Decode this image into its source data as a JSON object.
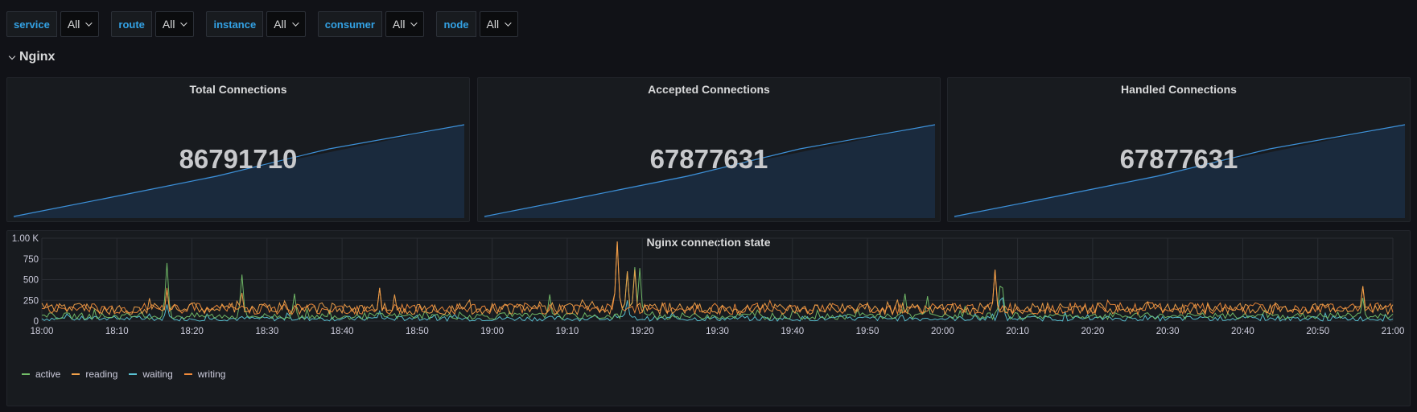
{
  "variables": [
    {
      "label": "service",
      "value": "All"
    },
    {
      "label": "route",
      "value": "All"
    },
    {
      "label": "instance",
      "value": "All"
    },
    {
      "label": "consumer",
      "value": "All"
    },
    {
      "label": "node",
      "value": "All"
    }
  ],
  "row": {
    "title": "Nginx"
  },
  "stats": [
    {
      "title": "Total Connections",
      "value": "86791710"
    },
    {
      "title": "Accepted Connections",
      "value": "67877631"
    },
    {
      "title": "Handled Connections",
      "value": "67877631"
    }
  ],
  "colors": {
    "active": "#73bf69",
    "reading": "#f2a14a",
    "waiting": "#5ac3d4",
    "writing": "#f08a3a",
    "sparkline": "#3d91d9"
  },
  "chart": {
    "title": "Nginx connection state",
    "legend": [
      "active",
      "reading",
      "waiting",
      "writing"
    ]
  },
  "chart_data": {
    "type": "line",
    "title": "Nginx connection state",
    "x_ticks": [
      "18:00",
      "18:10",
      "18:20",
      "18:30",
      "18:40",
      "18:50",
      "19:00",
      "19:10",
      "19:20",
      "19:30",
      "19:40",
      "19:50",
      "20:00",
      "20:10",
      "20:20",
      "20:30",
      "20:40",
      "20:50",
      "21:00"
    ],
    "y_ticks": [
      "0",
      "250",
      "500",
      "750",
      "1.00 K"
    ],
    "ylim": [
      0,
      1000
    ],
    "xlim_minutes": [
      0,
      180
    ],
    "grid": true,
    "legend_position": "bottom-left",
    "series": [
      {
        "name": "active",
        "spikes": [
          [
            16.5,
            700
          ],
          [
            26.5,
            560
          ],
          [
            33.5,
            330
          ],
          [
            67.5,
            320
          ],
          [
            78,
            600
          ],
          [
            79,
            650
          ],
          [
            79.5,
            640
          ],
          [
            115,
            330
          ],
          [
            118,
            300
          ],
          [
            127.5,
            420
          ],
          [
            128,
            400
          ],
          [
            176,
            280
          ]
        ]
      },
      {
        "name": "reading",
        "spikes": [
          [
            16.5,
            380
          ],
          [
            26.5,
            340
          ],
          [
            45,
            400
          ],
          [
            47,
            320
          ],
          [
            76.5,
            960
          ],
          [
            78,
            600
          ],
          [
            79,
            620
          ],
          [
            127,
            620
          ],
          [
            176,
            420
          ]
        ]
      },
      {
        "name": "waiting",
        "spikes": [
          [
            16.5,
            200
          ],
          [
            45,
            120
          ],
          [
            78,
            250
          ],
          [
            127.5,
            250
          ],
          [
            128,
            280
          ]
        ]
      },
      {
        "name": "writing",
        "spikes": [
          [
            16.5,
            400
          ],
          [
            45,
            400
          ],
          [
            76.5,
            960
          ],
          [
            127,
            620
          ],
          [
            176,
            420
          ]
        ]
      }
    ],
    "typical_range": {
      "active": [
        20,
        100
      ],
      "reading": [
        80,
        220
      ],
      "waiting": [
        0,
        60
      ],
      "writing": [
        80,
        220
      ]
    }
  }
}
